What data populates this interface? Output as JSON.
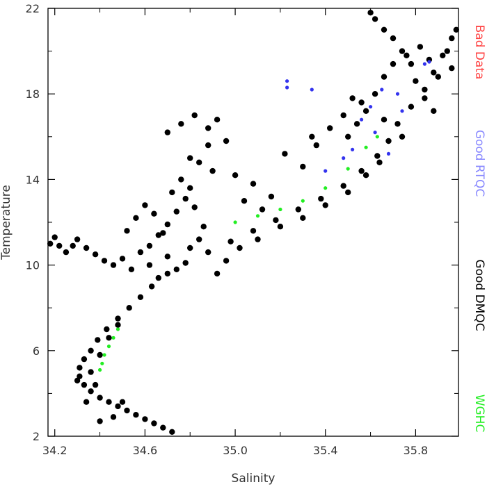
{
  "chart_data": {
    "type": "scatter",
    "title": "",
    "xlabel": "Salinity",
    "ylabel": "Temperature",
    "xlim": [
      34.17,
      35.99
    ],
    "ylim": [
      2,
      22
    ],
    "xticks": [
      "34.2",
      "34.6",
      "35.0",
      "35.4",
      "35.8"
    ],
    "xtick_values": [
      34.2,
      34.6,
      35.0,
      35.4,
      35.8
    ],
    "yticks": [
      "2",
      "6",
      "10",
      "14",
      "18",
      "22"
    ],
    "ytick_values": [
      2,
      6,
      10,
      14,
      18,
      22
    ],
    "grid": false,
    "legend_position": "right",
    "legend": [
      {
        "label": "Bad Data",
        "color": "#ff4444"
      },
      {
        "label": "Good RTQC",
        "color": "#8888ff"
      },
      {
        "label": "Good DMQC",
        "color": "#000000"
      },
      {
        "label": "WGHC",
        "color": "#22ee22"
      }
    ],
    "series": [
      {
        "name": "Good DMQC",
        "color": "#000000",
        "points": [
          [
            34.72,
            2.2
          ],
          [
            34.68,
            2.4
          ],
          [
            34.64,
            2.6
          ],
          [
            34.6,
            2.8
          ],
          [
            34.56,
            3.0
          ],
          [
            34.52,
            3.2
          ],
          [
            34.48,
            3.4
          ],
          [
            34.44,
            3.6
          ],
          [
            34.4,
            3.8
          ],
          [
            34.36,
            4.1
          ],
          [
            34.33,
            4.4
          ],
          [
            34.31,
            4.8
          ],
          [
            34.31,
            5.2
          ],
          [
            34.33,
            5.6
          ],
          [
            34.36,
            6.0
          ],
          [
            34.39,
            6.5
          ],
          [
            34.43,
            7.0
          ],
          [
            34.48,
            7.5
          ],
          [
            34.53,
            8.0
          ],
          [
            34.58,
            8.5
          ],
          [
            34.63,
            9.0
          ],
          [
            34.7,
            9.6
          ],
          [
            34.78,
            10.1
          ],
          [
            34.88,
            10.6
          ],
          [
            34.98,
            11.1
          ],
          [
            35.08,
            11.6
          ],
          [
            35.18,
            12.1
          ],
          [
            35.28,
            12.6
          ],
          [
            35.38,
            13.1
          ],
          [
            35.48,
            13.7
          ],
          [
            35.56,
            14.4
          ],
          [
            35.63,
            15.1
          ],
          [
            35.68,
            15.8
          ],
          [
            35.72,
            16.6
          ],
          [
            35.78,
            17.4
          ],
          [
            35.84,
            18.2
          ],
          [
            35.88,
            19.0
          ],
          [
            35.92,
            19.8
          ],
          [
            35.96,
            20.6
          ],
          [
            35.98,
            21.0
          ],
          [
            34.18,
            11.0
          ],
          [
            34.2,
            11.3
          ],
          [
            34.22,
            10.9
          ],
          [
            34.25,
            10.6
          ],
          [
            34.28,
            10.9
          ],
          [
            34.3,
            11.2
          ],
          [
            34.34,
            10.8
          ],
          [
            34.38,
            10.5
          ],
          [
            34.42,
            10.2
          ],
          [
            34.46,
            10.0
          ],
          [
            34.5,
            10.3
          ],
          [
            34.54,
            9.8
          ],
          [
            34.58,
            10.6
          ],
          [
            34.62,
            10.9
          ],
          [
            34.66,
            11.4
          ],
          [
            34.7,
            11.9
          ],
          [
            34.74,
            12.5
          ],
          [
            34.78,
            13.1
          ],
          [
            34.82,
            12.7
          ],
          [
            34.86,
            11.8
          ],
          [
            34.52,
            11.6
          ],
          [
            34.56,
            12.2
          ],
          [
            34.6,
            12.8
          ],
          [
            34.64,
            12.4
          ],
          [
            34.68,
            11.5
          ],
          [
            34.72,
            13.4
          ],
          [
            34.76,
            14.0
          ],
          [
            34.8,
            13.6
          ],
          [
            34.84,
            14.8
          ],
          [
            34.88,
            15.6
          ],
          [
            34.7,
            16.2
          ],
          [
            34.76,
            16.6
          ],
          [
            34.8,
            15.0
          ],
          [
            34.92,
            16.8
          ],
          [
            34.96,
            15.8
          ],
          [
            35.0,
            14.2
          ],
          [
            35.04,
            13.0
          ],
          [
            35.08,
            13.8
          ],
          [
            35.12,
            12.6
          ],
          [
            35.16,
            13.2
          ],
          [
            34.92,
            9.6
          ],
          [
            34.96,
            10.2
          ],
          [
            35.02,
            10.8
          ],
          [
            35.1,
            11.2
          ],
          [
            35.2,
            11.8
          ],
          [
            35.3,
            12.2
          ],
          [
            35.4,
            12.8
          ],
          [
            35.5,
            13.4
          ],
          [
            35.58,
            14.2
          ],
          [
            35.64,
            14.8
          ],
          [
            35.5,
            16.0
          ],
          [
            35.54,
            16.6
          ],
          [
            35.58,
            17.2
          ],
          [
            35.62,
            18.0
          ],
          [
            35.66,
            18.8
          ],
          [
            35.7,
            19.4
          ],
          [
            35.74,
            20.0
          ],
          [
            35.78,
            19.4
          ],
          [
            35.82,
            20.2
          ],
          [
            35.86,
            19.6
          ],
          [
            35.6,
            21.8
          ],
          [
            35.62,
            21.5
          ],
          [
            35.66,
            21.0
          ],
          [
            35.7,
            20.6
          ],
          [
            35.76,
            19.8
          ],
          [
            35.8,
            18.6
          ],
          [
            35.84,
            17.8
          ],
          [
            35.9,
            18.8
          ],
          [
            35.94,
            20.0
          ],
          [
            35.96,
            19.2
          ],
          [
            35.22,
            15.2
          ],
          [
            35.3,
            14.6
          ],
          [
            35.36,
            15.6
          ],
          [
            35.42,
            16.4
          ],
          [
            35.48,
            17.0
          ],
          [
            35.52,
            17.8
          ],
          [
            35.56,
            17.6
          ],
          [
            35.66,
            16.8
          ],
          [
            35.74,
            16.0
          ],
          [
            35.88,
            17.2
          ],
          [
            34.82,
            17.0
          ],
          [
            34.88,
            16.4
          ],
          [
            34.9,
            14.4
          ],
          [
            35.34,
            16.0
          ],
          [
            34.62,
            10.0
          ],
          [
            34.66,
            9.4
          ],
          [
            34.7,
            10.4
          ],
          [
            34.74,
            9.8
          ],
          [
            34.8,
            10.8
          ],
          [
            34.84,
            11.2
          ],
          [
            34.4,
            2.7
          ],
          [
            34.46,
            2.9
          ],
          [
            34.5,
            3.6
          ],
          [
            34.34,
            3.6
          ],
          [
            34.36,
            5.0
          ],
          [
            34.4,
            5.8
          ],
          [
            34.44,
            6.6
          ],
          [
            34.48,
            7.2
          ],
          [
            34.3,
            4.6
          ],
          [
            34.38,
            4.4
          ]
        ]
      },
      {
        "name": "Good RTQC",
        "color": "#3333ee",
        "points": [
          [
            35.23,
            18.6
          ],
          [
            35.23,
            18.3
          ],
          [
            35.34,
            18.2
          ],
          [
            35.56,
            16.8
          ],
          [
            35.6,
            17.4
          ],
          [
            35.65,
            18.2
          ],
          [
            35.72,
            18.0
          ],
          [
            35.84,
            19.4
          ],
          [
            35.86,
            19.5
          ],
          [
            35.52,
            15.4
          ],
          [
            35.48,
            15.0
          ],
          [
            35.4,
            14.4
          ],
          [
            35.62,
            16.2
          ],
          [
            35.68,
            15.2
          ],
          [
            35.74,
            17.2
          ]
        ]
      },
      {
        "name": "WGHC",
        "color": "#22ee22",
        "points": [
          [
            34.4,
            5.1
          ],
          [
            34.41,
            5.4
          ],
          [
            34.42,
            5.8
          ],
          [
            34.44,
            6.2
          ],
          [
            34.46,
            6.6
          ],
          [
            34.48,
            7.0
          ],
          [
            35.0,
            12.0
          ],
          [
            35.1,
            12.3
          ],
          [
            35.2,
            12.6
          ],
          [
            35.3,
            13.0
          ],
          [
            35.4,
            13.6
          ],
          [
            35.5,
            14.5
          ],
          [
            35.58,
            15.5
          ],
          [
            35.63,
            16.0
          ]
        ]
      }
    ]
  }
}
